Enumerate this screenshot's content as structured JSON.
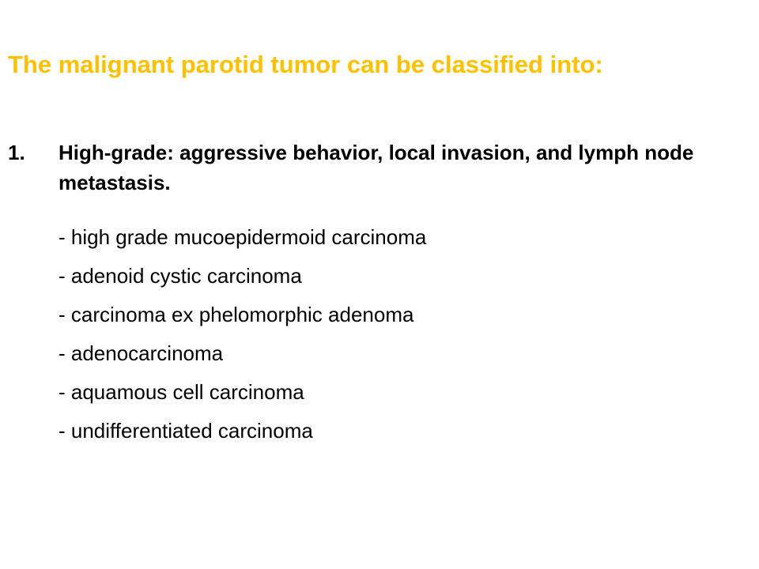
{
  "slide": {
    "title": "The malignant parotid tumor can be classified into:",
    "section": {
      "number": "1.",
      "heading": "High-grade: aggressive behavior, local invasion, and lymph node metastasis.",
      "items": [
        "- high grade mucoepidermoid carcinoma",
        "- adenoid cystic carcinoma",
        "- carcinoma ex phelomorphic adenoma",
        "- adenocarcinoma",
        "- aquamous cell carcinoma",
        "- undifferentiated carcinoma"
      ]
    },
    "colors": {
      "title": "#FFC000",
      "body": "#000000",
      "background": "#FFFFFF"
    }
  }
}
